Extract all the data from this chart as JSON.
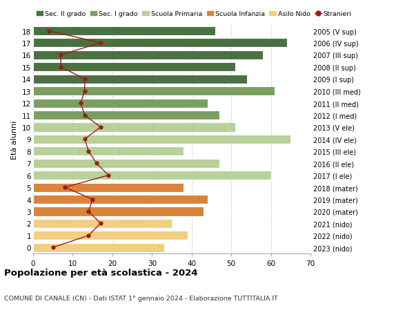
{
  "ages": [
    18,
    17,
    16,
    15,
    14,
    13,
    12,
    11,
    10,
    9,
    8,
    7,
    6,
    5,
    4,
    3,
    2,
    1,
    0
  ],
  "years": [
    "2005 (V sup)",
    "2006 (IV sup)",
    "2007 (III sup)",
    "2008 (II sup)",
    "2009 (I sup)",
    "2010 (III med)",
    "2011 (II med)",
    "2012 (I med)",
    "2013 (V ele)",
    "2014 (IV ele)",
    "2015 (III ele)",
    "2016 (II ele)",
    "2017 (I ele)",
    "2018 (mater)",
    "2019 (mater)",
    "2020 (mater)",
    "2021 (nido)",
    "2022 (nido)",
    "2023 (nido)"
  ],
  "bar_values": [
    46,
    64,
    58,
    51,
    54,
    61,
    44,
    47,
    51,
    65,
    38,
    47,
    60,
    38,
    44,
    43,
    35,
    39,
    33
  ],
  "stranieri": [
    4,
    17,
    7,
    7,
    13,
    13,
    12,
    13,
    17,
    13,
    14,
    16,
    19,
    8,
    15,
    14,
    17,
    14,
    5
  ],
  "bar_colors": [
    "#4a7043",
    "#4a7043",
    "#4a7043",
    "#4a7043",
    "#4a7043",
    "#7a9f60",
    "#7a9f60",
    "#7a9f60",
    "#b8d09a",
    "#b8d09a",
    "#b8d09a",
    "#b8d09a",
    "#b8d09a",
    "#d9843a",
    "#d9843a",
    "#d9843a",
    "#f0d080",
    "#f0d080",
    "#f0d080"
  ],
  "color_sec2": "#4a7043",
  "color_sec1": "#7a9f60",
  "color_prim": "#b8d09a",
  "color_inf": "#d9843a",
  "color_nido": "#f0d080",
  "color_stranieri": "#9b1b1b",
  "xlim": [
    0,
    70
  ],
  "title_main": "Popolazione per età scolastica - 2024",
  "subtitle": "COMUNE DI CANALE (CN) - Dati ISTAT 1° gennaio 2024 - Elaborazione TUTTITALIA.IT",
  "ylabel_left": "Età alunni",
  "legend_labels": [
    "Sec. II grado",
    "Sec. I grado",
    "Scuola Primaria",
    "Scuola Infanzia",
    "Asilo Nido",
    "Stranieri"
  ],
  "background_color": "#ffffff",
  "bar_height": 0.75
}
